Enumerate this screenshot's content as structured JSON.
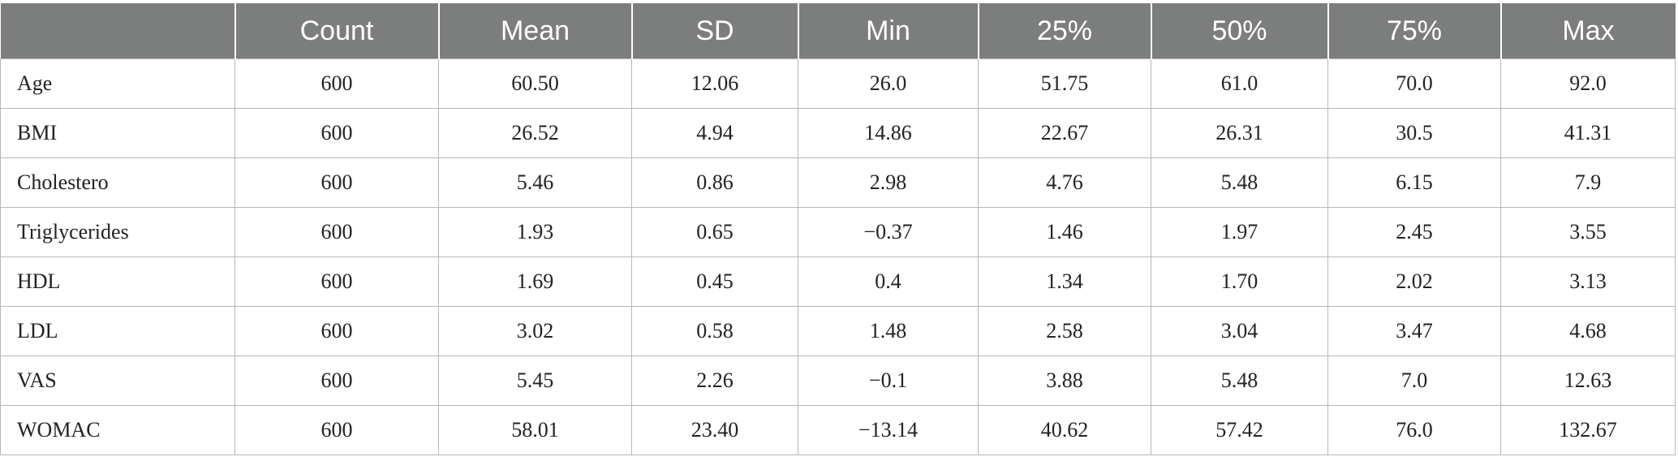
{
  "table": {
    "headers": [
      "",
      "Count",
      "Mean",
      "SD",
      "Min",
      "25%",
      "50%",
      "75%",
      "Max"
    ],
    "rows": [
      [
        "Age",
        "600",
        "60.50",
        "12.06",
        "26.0",
        "51.75",
        "61.0",
        "70.0",
        "92.0"
      ],
      [
        "BMI",
        "600",
        "26.52",
        "4.94",
        "14.86",
        "22.67",
        "26.31",
        "30.5",
        "41.31"
      ],
      [
        "Cholestero",
        "600",
        "5.46",
        "0.86",
        "2.98",
        "4.76",
        "5.48",
        "6.15",
        "7.9"
      ],
      [
        "Triglycerides",
        "600",
        "1.93",
        "0.65",
        "−0.37",
        "1.46",
        "1.97",
        "2.45",
        "3.55"
      ],
      [
        "HDL",
        "600",
        "1.69",
        "0.45",
        "0.4",
        "1.34",
        "1.70",
        "2.02",
        "3.13"
      ],
      [
        "LDL",
        "600",
        "3.02",
        "0.58",
        "1.48",
        "2.58",
        "3.04",
        "3.47",
        "4.68"
      ],
      [
        "VAS",
        "600",
        "5.45",
        "2.26",
        "−0.1",
        "3.88",
        "5.48",
        "7.0",
        "12.63"
      ],
      [
        "WOMAC",
        "600",
        "58.01",
        "23.40",
        "−13.14",
        "40.62",
        "57.42",
        "76.0",
        "132.67"
      ]
    ]
  },
  "colors": {
    "header_background": "#7c7e7d",
    "header_text": "#ffffff",
    "grid_line": "#b8b8b8"
  }
}
